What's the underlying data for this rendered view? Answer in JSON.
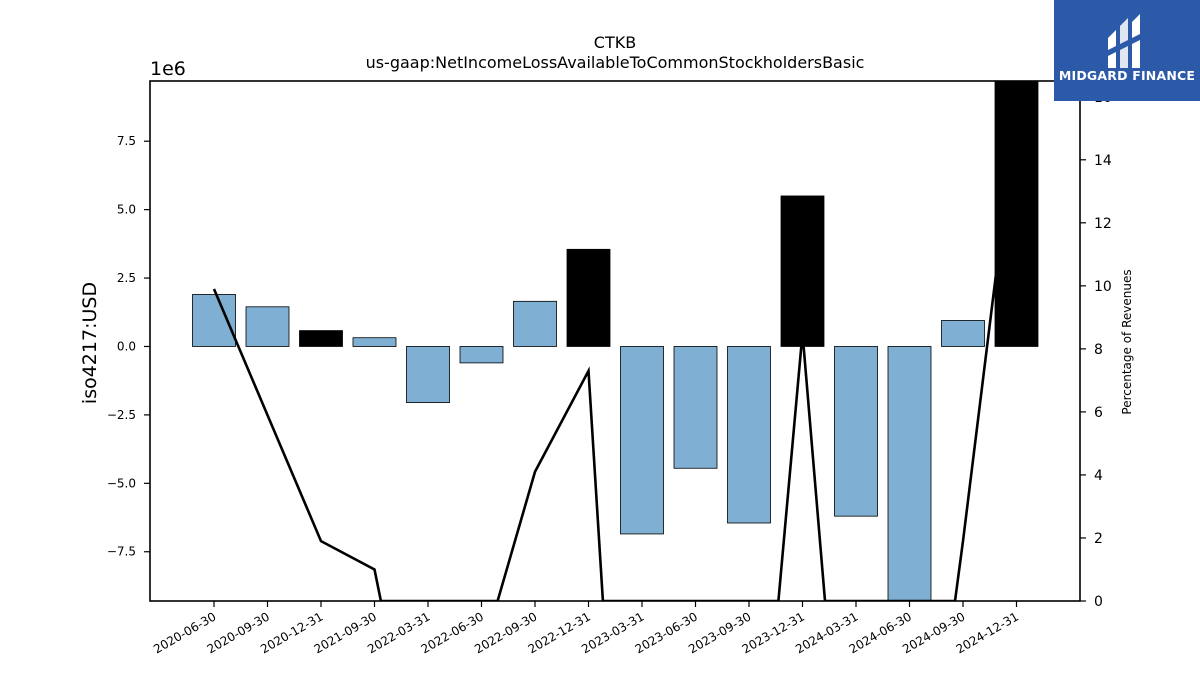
{
  "chart_data": {
    "type": "bar",
    "title": "CTKB",
    "subtitle": "us-gaap:NetIncomeLossAvailableToCommonStockholdersBasic",
    "ylabel": "iso4217:USD",
    "y_offset_label": "1e6",
    "y2label": "Percentage of Revenues",
    "categories": [
      "2020-06-30",
      "2020-09-30",
      "2020-12-31",
      "2021-09-30",
      "2022-03-31",
      "2022-06-30",
      "2022-09-30",
      "2022-12-31",
      "2023-03-31",
      "2023-06-30",
      "2023-09-30",
      "2023-12-31",
      "2024-03-31",
      "2024-06-30",
      "2024-09-30",
      "2024-12-31"
    ],
    "values": [
      1.9,
      1.45,
      0.58,
      0.32,
      -2.05,
      -0.6,
      1.65,
      3.55,
      -6.85,
      -4.45,
      -6.45,
      5.5,
      -6.2,
      -9.3,
      0.95,
      9.7
    ],
    "bar_colors": [
      "#7fb0d3",
      "#7fb0d3",
      "#000000",
      "#7fb0d3",
      "#7fb0d3",
      "#7fb0d3",
      "#7fb0d3",
      "#000000",
      "#7fb0d3",
      "#7fb0d3",
      "#7fb0d3",
      "#000000",
      "#7fb0d3",
      "#7fb0d3",
      "#7fb0d3",
      "#000000"
    ],
    "ylim": [
      -9.3,
      9.7
    ],
    "yticks": [
      -7.5,
      -5.0,
      -2.5,
      0.0,
      2.5,
      5.0,
      7.5
    ],
    "ytick_labels": [
      "−7.5",
      "−5.0",
      "−2.5",
      "0.0",
      "2.5",
      "5.0",
      "7.5"
    ],
    "series2": {
      "x": [
        0,
        1,
        2,
        3,
        3.12,
        5.3,
        6,
        7,
        7.27,
        10.55,
        11,
        11.42,
        13.85,
        14,
        14.7
      ],
      "values": [
        9.9,
        5.9,
        1.9,
        1.0,
        0,
        0,
        4.1,
        7.3,
        0,
        0,
        8.5,
        0,
        0,
        1.9,
        11.5
      ]
    },
    "y2lim": [
      0,
      16.5
    ],
    "y2ticks": [
      0,
      2,
      4,
      6,
      8,
      10,
      12,
      14,
      16
    ],
    "y2tick_labels": [
      "0",
      "2",
      "4",
      "6",
      "8",
      "10",
      "12",
      "14",
      "16"
    ],
    "grid": false,
    "colors": {
      "bar_positive": "#7fb0d3",
      "bar_highlight": "#000000",
      "line": "#000000"
    }
  },
  "brand": {
    "name": "MIDGARD FINANCE",
    "color": "#2d5aa8"
  }
}
